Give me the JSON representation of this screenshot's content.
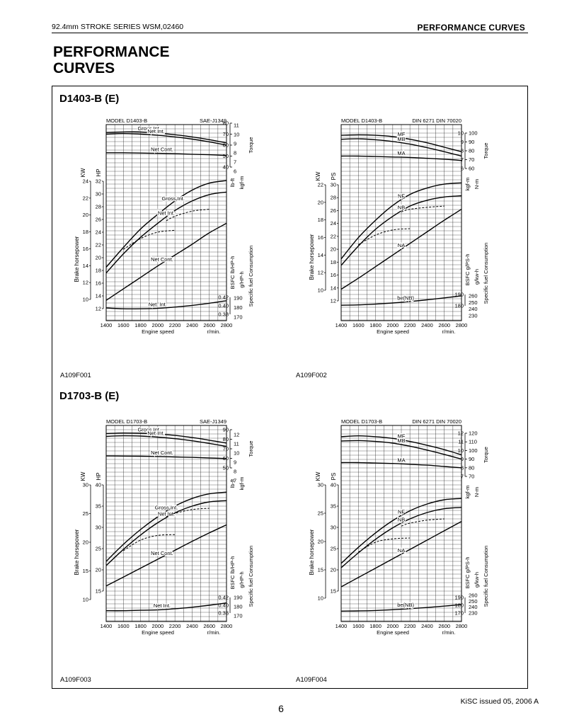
{
  "header": {
    "left": "92.4mm STROKE SERIES WSM,02460",
    "right": "PERFORMANCE CURVES"
  },
  "title_line1": "PERFORMANCE",
  "title_line2": "CURVES",
  "sections": [
    {
      "title": "D1403-B (E)",
      "fig_left": "A109F001",
      "fig_right": "A109F002"
    },
    {
      "title": "D1703-B (E)",
      "fig_left": "A109F003",
      "fig_right": "A109F004"
    }
  ],
  "footer": {
    "page": "6",
    "issued": "KiSC issued 05, 2006 A"
  },
  "chart_data": [
    {
      "type": "line",
      "header_left": "MODEL D1403-B",
      "header_right": "SAE-J1349",
      "xlabel": "Engine speed",
      "xunit": "r/min.",
      "x": [
        1400,
        1600,
        1800,
        2000,
        2200,
        2400,
        2600,
        2800
      ],
      "hp_ticks": [
        12,
        14,
        16,
        18,
        20,
        22,
        24,
        26,
        28,
        30,
        32
      ],
      "kw_ticks": [
        10,
        12,
        14,
        16,
        18,
        20,
        22,
        24
      ],
      "torque_ticks": [
        6,
        7,
        8,
        9,
        10,
        11
      ],
      "torque_lbft_ticks": [
        40,
        50,
        60,
        70,
        80
      ],
      "bsfc_ticks": [
        "0.38",
        "0.40",
        "0.42"
      ],
      "bsfc_gkw_ticks": [
        "170",
        "180",
        "190"
      ],
      "left_axis_label": "Brake horsepower",
      "kw_label": "KW",
      "hp_label": "HP",
      "torque_label": "Torque",
      "lbft_label": "lb-ft",
      "kgfm_label": "kgf-m",
      "bsfc_label1": "BSFC lb/HP-h",
      "bsfc_label2": "g/HP-h",
      "sfc_label": "Specific fuel Consumption",
      "series": [
        {
          "name": "Gross Int.",
          "group": "torque",
          "values": [
            71.5,
            72,
            72,
            71,
            69.5,
            67.5,
            65,
            62
          ],
          "label_x": 1900
        },
        {
          "name": "Net Int.",
          "group": "torque",
          "values": [
            70,
            70.5,
            70,
            69,
            67.5,
            65.5,
            63,
            60
          ],
          "label_x": 1980
        },
        {
          "name": "Net Cont.",
          "group": "torque",
          "values": [
            53,
            53,
            52.8,
            52.5,
            52.2,
            51.7,
            51.2,
            50.5
          ],
          "label_x": 2050
        },
        {
          "name": "Gross Int.",
          "group": "power",
          "values": [
            18.5,
            21.6,
            24.5,
            26.8,
            28.9,
            30.6,
            31.7,
            32.1
          ],
          "label_x": 2180
        },
        {
          "name": "Net Int.",
          "group": "power",
          "values": [
            17.6,
            20.6,
            23.2,
            25.4,
            27.4,
            28.9,
            29.9,
            30.3
          ],
          "label_x": 2100
        },
        {
          "name": "",
          "group": "power_dash",
          "dashed": true,
          "x": [
            2100,
            2200,
            2400,
            2600
          ],
          "values": [
            25.8,
            26.5,
            27.3,
            27.6
          ]
        },
        {
          "name": "",
          "group": "power_dash",
          "dashed": true,
          "x": [
            1600,
            1800,
            2000,
            2200
          ],
          "values": [
            21.3,
            23,
            24,
            24.3
          ]
        },
        {
          "name": "Net Cont.",
          "group": "power",
          "values": [
            13.3,
            15.1,
            16.9,
            18.7,
            20.4,
            22.1,
            23.9,
            25.4
          ],
          "label_x": 2050
        },
        {
          "name": "Net. Int.",
          "group": "bsfc",
          "values": [
            0.395,
            0.393,
            0.393,
            0.394,
            0.397,
            0.401,
            0.406,
            0.412
          ],
          "label_x": 2000
        }
      ]
    },
    {
      "type": "line",
      "header_left": "MODEL D1403-B",
      "header_right": "DIN 6271   DIN 70020",
      "xlabel": "Engine speed",
      "xunit": "r/min.",
      "x": [
        1400,
        1600,
        1800,
        2000,
        2200,
        2400,
        2600,
        2800
      ],
      "ps_ticks": [
        12,
        14,
        16,
        18,
        20,
        22,
        24,
        26,
        28,
        30
      ],
      "kw_ticks": [
        10,
        12,
        14,
        16,
        18,
        20,
        22
      ],
      "torque_ticks": [
        6,
        7,
        8,
        9,
        10
      ],
      "torque_nm_ticks": [
        60,
        70,
        80,
        90,
        100
      ],
      "bsfc_ticks": [
        "180",
        "190"
      ],
      "bsfc_gkw_ticks": [
        "230",
        "240",
        "250",
        "260"
      ],
      "left_axis_label": "Brake horsepower",
      "kw_label": "KW",
      "ps_label": "PS",
      "torque_label": "Torque",
      "kgfm_label": "kgf-m",
      "nm_label": "N-m",
      "bsfc_label1": "BSFC g/PS-h",
      "bsfc_label2": "g/kw-h",
      "sfc_label": "Specific fuel Consumption",
      "series": [
        {
          "name": "MF",
          "group": "torque",
          "values": [
            9.75,
            9.8,
            9.75,
            9.6,
            9.3,
            8.9,
            8.4,
            7.9
          ],
          "label_x": 2100
        },
        {
          "name": "MB",
          "group": "torque",
          "values": [
            9.3,
            9.35,
            9.25,
            9.05,
            8.75,
            8.35,
            7.9,
            7.4
          ],
          "label_x": 2100
        },
        {
          "name": "MA",
          "group": "torque",
          "values": [
            7.4,
            7.4,
            7.35,
            7.3,
            7.25,
            7.15,
            7.05,
            6.9
          ],
          "label_x": 2100
        },
        {
          "name": "NF",
          "group": "power",
          "values": [
            18.5,
            21.8,
            24.5,
            26.8,
            28.5,
            29.5,
            30.1,
            30.3
          ],
          "label_x": 2100
        },
        {
          "name": "NB",
          "group": "power",
          "values": [
            17.5,
            20.5,
            23.1,
            25.1,
            26.7,
            27.6,
            28.1,
            28.3
          ],
          "label_x": 2100
        },
        {
          "name": "",
          "group": "power_dash",
          "dashed": true,
          "x": [
            2100,
            2200,
            2400,
            2600
          ],
          "values": [
            25.8,
            26.2,
            26.5,
            26.7
          ]
        },
        {
          "name": "",
          "group": "power_dash",
          "dashed": true,
          "x": [
            1600,
            1800,
            2000,
            2200
          ],
          "values": [
            20.7,
            22.2,
            23.0,
            23.2
          ]
        },
        {
          "name": "NA",
          "group": "power",
          "values": [
            13.8,
            15.5,
            17.3,
            19.1,
            20.9,
            22.7,
            24.5,
            26.2
          ],
          "label_x": 2100
        },
        {
          "name": "be(NB)",
          "group": "bsfc",
          "values": [
            180.5,
            180.8,
            181.5,
            182.5,
            183.8,
            185.3,
            187,
            188.8
          ],
          "label_x": 2150
        }
      ]
    },
    {
      "type": "line",
      "header_left": "MODEL D1703-B",
      "header_right": "SAE-J1349",
      "xlabel": "Engine speed",
      "xunit": "r/min.",
      "x": [
        1400,
        1600,
        1800,
        2000,
        2200,
        2400,
        2600,
        2800
      ],
      "hp_ticks": [
        15,
        20,
        25,
        30,
        35,
        40
      ],
      "kw_ticks": [
        10,
        15,
        20,
        25,
        30
      ],
      "torque_ticks": [
        7,
        8,
        9,
        10,
        11,
        12
      ],
      "torque_lbft_ticks": [
        50,
        60,
        70,
        80,
        90
      ],
      "bsfc_ticks": [
        "0.38",
        "0.40",
        "0.42"
      ],
      "bsfc_gkw_ticks": [
        "170",
        "180",
        "190"
      ],
      "left_axis_label": "Brake horsepower",
      "kw_label": "KW",
      "hp_label": "HP",
      "torque_label": "Torque",
      "lbft_label": "lb-ft",
      "kgfm_label": "kgf-m",
      "bsfc_label1": "BSFC lb/HP-h",
      "bsfc_label2": "g/HP-h",
      "sfc_label": "Specific fuel Consumption",
      "series": [
        {
          "name": "Gross Int.",
          "group": "torque",
          "values": [
            86,
            86.5,
            86.3,
            85.5,
            84,
            81.8,
            79,
            76
          ],
          "label_x": 1900
        },
        {
          "name": "Net Int.",
          "group": "torque",
          "values": [
            83,
            83.6,
            83.3,
            82.2,
            80.6,
            78.4,
            75.6,
            72.5
          ],
          "label_x": 1980
        },
        {
          "name": "Net Cont.",
          "group": "torque",
          "values": [
            62.5,
            62.4,
            62.2,
            61.9,
            61.5,
            61,
            60.4,
            59.8
          ],
          "label_x": 2050
        },
        {
          "name": "Gross Int.",
          "group": "power",
          "values": [
            22,
            26,
            29.5,
            32.5,
            35,
            36.8,
            37.9,
            38.3
          ],
          "label_x": 2100
        },
        {
          "name": "Net Int.",
          "group": "power",
          "values": [
            21,
            24.8,
            28.2,
            31.1,
            33.4,
            35,
            36,
            36.3
          ],
          "label_x": 2100
        },
        {
          "name": "",
          "group": "power_dash",
          "dashed": true,
          "x": [
            2100,
            2200,
            2400,
            2600
          ],
          "values": [
            32.5,
            33.3,
            34.2,
            34.5
          ]
        },
        {
          "name": "",
          "group": "power_dash",
          "dashed": true,
          "x": [
            1600,
            1800,
            2000,
            2200
          ],
          "values": [
            24.5,
            27,
            28.1,
            28.3
          ]
        },
        {
          "name": "Net Cont.",
          "group": "power",
          "values": [
            16.2,
            18.3,
            20.4,
            22.5,
            24.6,
            26.7,
            28.7,
            30.6
          ],
          "label_x": 2050
        },
        {
          "name": "Net Int.",
          "group": "bsfc",
          "values": [
            0.386,
            0.386,
            0.387,
            0.388,
            0.391,
            0.395,
            0.4,
            0.406
          ],
          "label_x": 2050
        }
      ]
    },
    {
      "type": "line",
      "header_left": "MODEL D1703-B",
      "header_right": "DIN 6271   DIN 70020",
      "xlabel": "Engine speed",
      "xunit": "r/min.",
      "x": [
        1400,
        1600,
        1800,
        2000,
        2200,
        2400,
        2600,
        2800
      ],
      "ps_ticks": [
        15,
        20,
        25,
        30,
        35,
        40
      ],
      "kw_ticks": [
        10,
        15,
        20,
        25,
        30
      ],
      "torque_ticks": [
        7,
        8,
        9,
        10,
        11,
        12
      ],
      "torque_nm_ticks": [
        70,
        80,
        90,
        100,
        110,
        120
      ],
      "bsfc_ticks": [
        "170",
        "180",
        "190"
      ],
      "bsfc_gkw_ticks": [
        "230",
        "240",
        "250",
        "260"
      ],
      "left_axis_label": "Brake horsepower",
      "kw_label": "KW",
      "ps_label": "PS",
      "torque_label": "Torque",
      "kgfm_label": "kgf-m",
      "nm_label": "N-m",
      "bsfc_label1": "BSFC g/PS-h",
      "bsfc_label2": "g/kw-h",
      "sfc_label": "Specific fuel Consumption",
      "series": [
        {
          "name": "MF",
          "group": "torque",
          "values": [
            11.6,
            11.7,
            11.6,
            11.4,
            11.05,
            10.6,
            10.1,
            9.5
          ],
          "label_x": 2100
        },
        {
          "name": "MB",
          "group": "torque",
          "values": [
            11.1,
            11.15,
            11.05,
            10.85,
            10.5,
            10.05,
            9.55,
            9.0
          ],
          "label_x": 2100
        },
        {
          "name": "MA",
          "group": "torque",
          "values": [
            8.6,
            8.6,
            8.55,
            8.5,
            8.4,
            8.3,
            8.15,
            8.0
          ],
          "label_x": 2100
        },
        {
          "name": "NF",
          "group": "power",
          "values": [
            21.5,
            25.3,
            28.7,
            31.6,
            33.9,
            35.5,
            36.5,
            36.8
          ],
          "label_x": 2100
        },
        {
          "name": "NB",
          "group": "power",
          "values": [
            20.5,
            24,
            27.2,
            29.9,
            32,
            33.5,
            34.4,
            34.7
          ],
          "label_x": 2100
        },
        {
          "name": "",
          "group": "power_dash",
          "dashed": true,
          "x": [
            2100,
            2200,
            2400,
            2600
          ],
          "values": [
            30.3,
            31,
            31.7,
            32
          ]
        },
        {
          "name": "",
          "group": "power_dash",
          "dashed": true,
          "x": [
            1600,
            1800,
            2000,
            2200
          ],
          "values": [
            24.2,
            26.5,
            27.3,
            27.5
          ]
        },
        {
          "name": "NA",
          "group": "power",
          "values": [
            16,
            18.2,
            20.4,
            22.6,
            24.8,
            27,
            29.2,
            31.4
          ],
          "label_x": 2100
        },
        {
          "name": "be(NB)",
          "group": "bsfc",
          "values": [
            172.5,
            172.7,
            173.3,
            174.3,
            175.6,
            177.1,
            178.9,
            180.8
          ],
          "label_x": 2150
        }
      ]
    }
  ]
}
